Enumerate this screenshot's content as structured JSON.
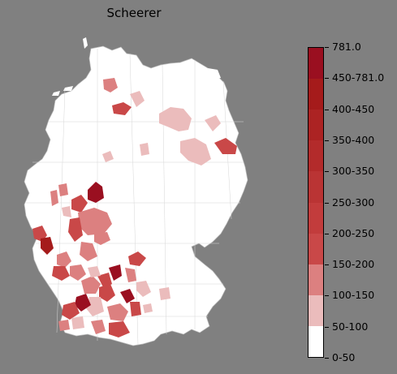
{
  "title": "Scheerer",
  "legend": {
    "labels": [
      "781.0",
      "450-781.0",
      "400-450",
      "350-400",
      "300-350",
      "250-300",
      "200-250",
      "150-200",
      "100-150",
      "50-100",
      "0-50"
    ],
    "colors": [
      "#ffffff",
      "#ebbcbc",
      "#dc8080",
      "#c94848",
      "#c23c3c",
      "#ba3434",
      "#b32b2b",
      "#ac2323",
      "#a51b1b",
      "#9a0f20"
    ]
  },
  "map": {
    "base_color": "#ffffff",
    "border_color": "#c8c8c8"
  }
}
